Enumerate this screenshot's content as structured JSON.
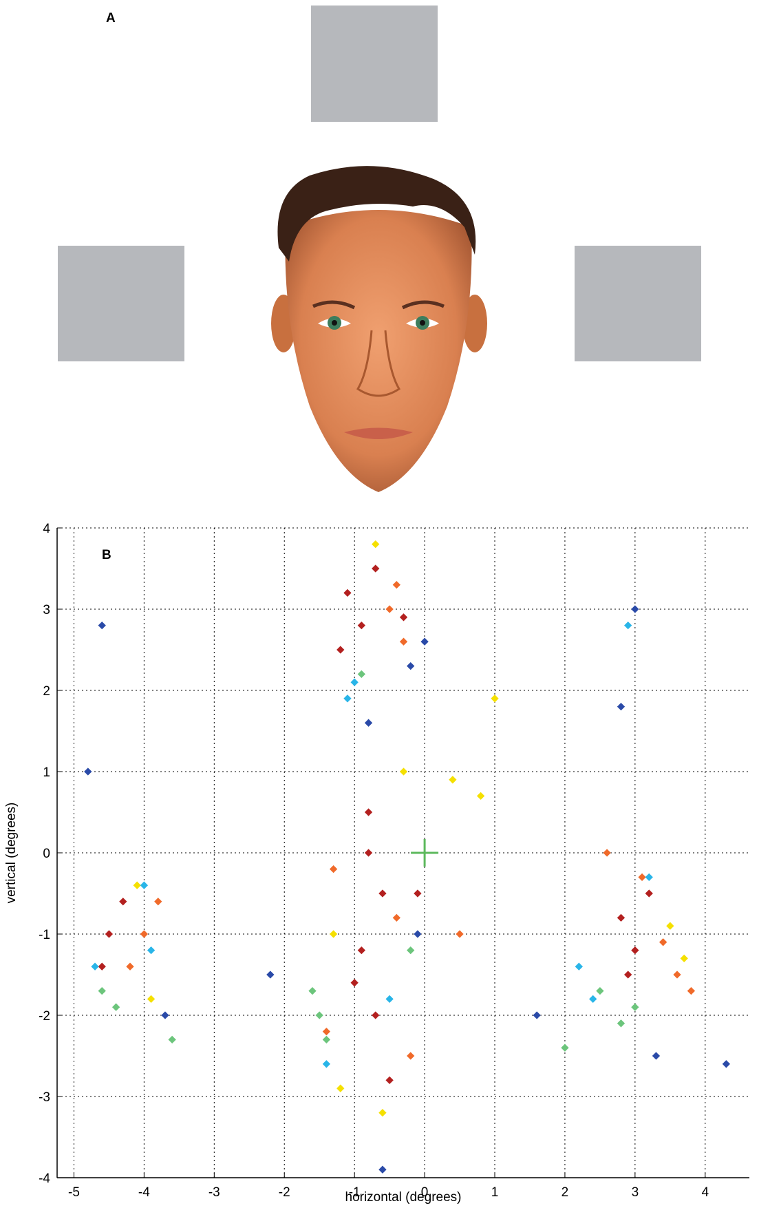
{
  "chart_data": {
    "type": "scatter",
    "panel_a_label": "A",
    "panel_b_label": "B",
    "xlabel": "horizontal (degrees)",
    "ylabel": "vertical (degrees)",
    "xlim": [
      -5.24,
      4.63
    ],
    "ylim": [
      -4,
      4
    ],
    "xticks": [
      -5,
      -4,
      -3,
      -2,
      -1,
      0,
      1,
      2,
      3,
      4
    ],
    "yticks": [
      -4,
      -3,
      -2,
      -1,
      0,
      1,
      2,
      3,
      4
    ],
    "grid": true,
    "fixation": {
      "x": 0,
      "y": 0,
      "color": "#5cb85c"
    },
    "series": [
      {
        "color": "#b3201f",
        "x": [
          -1.1,
          -0.9,
          -0.7,
          -1.2,
          -0.8,
          -0.6,
          -0.9,
          -0.7,
          -0.5,
          -1.0,
          -0.8,
          -4.5,
          -4.3,
          -4.6,
          2.8,
          3.0,
          3.2,
          2.9,
          -0.3,
          -0.1
        ],
        "values": [
          3.2,
          2.8,
          3.5,
          2.5,
          0.5,
          -0.5,
          -1.2,
          -2.0,
          -2.8,
          -1.6,
          0.0,
          -1.0,
          -0.6,
          -1.4,
          -0.8,
          -1.2,
          -0.5,
          -1.5,
          2.9,
          -0.5
        ]
      },
      {
        "color": "#f06a2a",
        "x": [
          -0.5,
          -0.3,
          -0.4,
          -1.3,
          -0.4,
          -4.0,
          -4.2,
          -3.8,
          3.4,
          3.6,
          3.1,
          2.6,
          -0.2,
          0.5,
          -1.4,
          3.8
        ],
        "values": [
          3.0,
          2.6,
          3.3,
          -0.2,
          -0.8,
          -1.0,
          -1.4,
          -0.6,
          -1.1,
          -1.5,
          -0.3,
          0.0,
          -2.5,
          -1.0,
          -2.2,
          -1.7
        ]
      },
      {
        "color": "#f5e000",
        "x": [
          -0.7,
          -1.3,
          -1.2,
          -0.3,
          -4.1,
          -3.9,
          3.5,
          3.7,
          0.8,
          1.0,
          -0.6,
          0.4
        ],
        "values": [
          3.8,
          -1.0,
          -2.9,
          1.0,
          -0.4,
          -1.8,
          -0.9,
          -1.3,
          0.7,
          1.9,
          -3.2,
          0.9
        ]
      },
      {
        "color": "#6cc57c",
        "x": [
          -1.5,
          -1.6,
          -1.4,
          -4.6,
          -4.4,
          -3.6,
          2.5,
          2.8,
          3.0,
          -0.9,
          -0.2,
          2.0
        ],
        "values": [
          -2.0,
          -1.7,
          -2.3,
          -1.7,
          -1.9,
          -2.3,
          -1.7,
          -2.1,
          -1.9,
          2.2,
          -1.2,
          -2.4
        ]
      },
      {
        "color": "#29b5e8",
        "x": [
          -1.1,
          -1.0,
          -1.4,
          -4.7,
          -4.0,
          2.2,
          2.4,
          -0.5,
          2.9,
          3.2,
          -3.9
        ],
        "values": [
          1.9,
          2.1,
          -2.6,
          -1.4,
          -0.4,
          -1.4,
          -1.8,
          -1.8,
          2.8,
          -0.3,
          -1.2
        ]
      },
      {
        "color": "#2a4aa8",
        "x": [
          -0.2,
          0.0,
          -0.8,
          -0.1,
          -4.8,
          -4.6,
          -3.7,
          3.0,
          2.8,
          3.3,
          -0.6,
          4.3,
          -2.2,
          1.6
        ],
        "values": [
          2.3,
          2.6,
          1.6,
          -1.0,
          1.0,
          2.8,
          -2.0,
          3.0,
          1.8,
          -2.5,
          -3.9,
          -2.6,
          -1.5,
          -2.0
        ]
      }
    ]
  }
}
